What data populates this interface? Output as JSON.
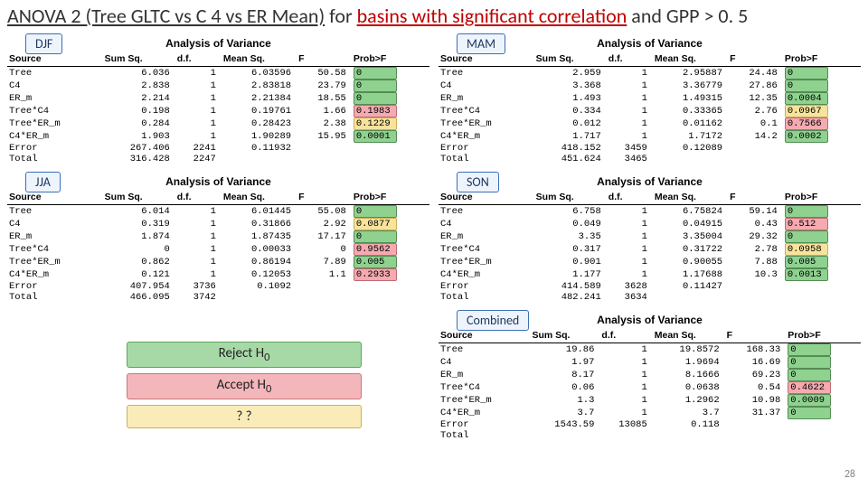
{
  "title": {
    "p1": "ANOVA 2 (Tree GLTC vs C 4 vs ER Mean)",
    "p2": " for ",
    "p3": "basins with significant correlation",
    "p4": " and GPP > 0. 5"
  },
  "slide_number": "28",
  "columns": [
    "Source",
    "Sum Sq.",
    "d.f.",
    "Mean Sq.",
    "F",
    "Prob>F"
  ],
  "anova_heading": "Analysis of Variance",
  "legend": {
    "reject": "Reject H",
    "sub0": "0",
    "accept": "Accept H",
    "qq": "? ?"
  },
  "panels": [
    {
      "tag": "DJF",
      "rows": [
        {
          "src": "Tree",
          "sumsq": "6.036",
          "df": "1",
          "meansq": "6.03596",
          "f": "50.58",
          "p": "0",
          "hl": "green"
        },
        {
          "src": "C4",
          "sumsq": "2.838",
          "df": "1",
          "meansq": "2.83818",
          "f": "23.79",
          "p": "0",
          "hl": "green"
        },
        {
          "src": "ER_m",
          "sumsq": "2.214",
          "df": "1",
          "meansq": "2.21384",
          "f": "18.55",
          "p": "0",
          "hl": "green"
        },
        {
          "src": "Tree*C4",
          "sumsq": "0.198",
          "df": "1",
          "meansq": "0.19761",
          "f": "1.66",
          "p": "0.1983",
          "hl": "red"
        },
        {
          "src": "Tree*ER_m",
          "sumsq": "0.284",
          "df": "1",
          "meansq": "0.28423",
          "f": "2.38",
          "p": "0.1229",
          "hl": "yellow"
        },
        {
          "src": "C4*ER_m",
          "sumsq": "1.903",
          "df": "1",
          "meansq": "1.90289",
          "f": "15.95",
          "p": "0.0001",
          "hl": "green"
        },
        {
          "src": "Error",
          "sumsq": "267.406",
          "df": "2241",
          "meansq": "0.11932",
          "f": "",
          "p": "",
          "hl": ""
        },
        {
          "src": "Total",
          "sumsq": "316.428",
          "df": "2247",
          "meansq": "",
          "f": "",
          "p": "",
          "hl": ""
        }
      ]
    },
    {
      "tag": "MAM",
      "rows": [
        {
          "src": "Tree",
          "sumsq": "2.959",
          "df": "1",
          "meansq": "2.95887",
          "f": "24.48",
          "p": "0",
          "hl": "green"
        },
        {
          "src": "C4",
          "sumsq": "3.368",
          "df": "1",
          "meansq": "3.36779",
          "f": "27.86",
          "p": "0",
          "hl": "green"
        },
        {
          "src": "ER_m",
          "sumsq": "1.493",
          "df": "1",
          "meansq": "1.49315",
          "f": "12.35",
          "p": "0.0004",
          "hl": "green"
        },
        {
          "src": "Tree*C4",
          "sumsq": "0.334",
          "df": "1",
          "meansq": "0.33365",
          "f": "2.76",
          "p": "0.0967",
          "hl": "yellow"
        },
        {
          "src": "Tree*ER_m",
          "sumsq": "0.012",
          "df": "1",
          "meansq": "0.01162",
          "f": "0.1",
          "p": "0.7566",
          "hl": "red"
        },
        {
          "src": "C4*ER_m",
          "sumsq": "1.717",
          "df": "1",
          "meansq": "1.7172",
          "f": "14.2",
          "p": "0.0002",
          "hl": "green"
        },
        {
          "src": "Error",
          "sumsq": "418.152",
          "df": "3459",
          "meansq": "0.12089",
          "f": "",
          "p": "",
          "hl": ""
        },
        {
          "src": "Total",
          "sumsq": "451.624",
          "df": "3465",
          "meansq": "",
          "f": "",
          "p": "",
          "hl": ""
        }
      ]
    },
    {
      "tag": "JJA",
      "rows": [
        {
          "src": "Tree",
          "sumsq": "6.014",
          "df": "1",
          "meansq": "6.01445",
          "f": "55.08",
          "p": "0",
          "hl": "green"
        },
        {
          "src": "C4",
          "sumsq": "0.319",
          "df": "1",
          "meansq": "0.31866",
          "f": "2.92",
          "p": "0.0877",
          "hl": "yellow"
        },
        {
          "src": "ER_m",
          "sumsq": "1.874",
          "df": "1",
          "meansq": "1.87435",
          "f": "17.17",
          "p": "0",
          "hl": "green"
        },
        {
          "src": "Tree*C4",
          "sumsq": "0",
          "df": "1",
          "meansq": "0.00033",
          "f": "0",
          "p": "0.9562",
          "hl": "red"
        },
        {
          "src": "Tree*ER_m",
          "sumsq": "0.862",
          "df": "1",
          "meansq": "0.86194",
          "f": "7.89",
          "p": "0.005",
          "hl": "green"
        },
        {
          "src": "C4*ER_m",
          "sumsq": "0.121",
          "df": "1",
          "meansq": "0.12053",
          "f": "1.1",
          "p": "0.2933",
          "hl": "red"
        },
        {
          "src": "Error",
          "sumsq": "407.954",
          "df": "3736",
          "meansq": "0.1092",
          "f": "",
          "p": "",
          "hl": ""
        },
        {
          "src": "Total",
          "sumsq": "466.095",
          "df": "3742",
          "meansq": "",
          "f": "",
          "p": "",
          "hl": ""
        }
      ]
    },
    {
      "tag": "SON",
      "rows": [
        {
          "src": "Tree",
          "sumsq": "6.758",
          "df": "1",
          "meansq": "6.75824",
          "f": "59.14",
          "p": "0",
          "hl": "green"
        },
        {
          "src": "C4",
          "sumsq": "0.049",
          "df": "1",
          "meansq": "0.04915",
          "f": "0.43",
          "p": "0.512",
          "hl": "red"
        },
        {
          "src": "ER_m",
          "sumsq": "3.35",
          "df": "1",
          "meansq": "3.35004",
          "f": "29.32",
          "p": "0",
          "hl": "green"
        },
        {
          "src": "Tree*C4",
          "sumsq": "0.317",
          "df": "1",
          "meansq": "0.31722",
          "f": "2.78",
          "p": "0.0958",
          "hl": "yellow"
        },
        {
          "src": "Tree*ER_m",
          "sumsq": "0.901",
          "df": "1",
          "meansq": "0.90055",
          "f": "7.88",
          "p": "0.005",
          "hl": "green"
        },
        {
          "src": "C4*ER_m",
          "sumsq": "1.177",
          "df": "1",
          "meansq": "1.17688",
          "f": "10.3",
          "p": "0.0013",
          "hl": "green"
        },
        {
          "src": "Error",
          "sumsq": "414.589",
          "df": "3628",
          "meansq": "0.11427",
          "f": "",
          "p": "",
          "hl": ""
        },
        {
          "src": "Total",
          "sumsq": "482.241",
          "df": "3634",
          "meansq": "",
          "f": "",
          "p": "",
          "hl": ""
        }
      ]
    },
    {
      "tag": "Combined",
      "rows": [
        {
          "src": "Tree",
          "sumsq": "19.86",
          "df": "1",
          "meansq": "19.8572",
          "f": "168.33",
          "p": "0",
          "hl": "green"
        },
        {
          "src": "C4",
          "sumsq": "1.97",
          "df": "1",
          "meansq": "1.9694",
          "f": "16.69",
          "p": "0",
          "hl": "green"
        },
        {
          "src": "ER_m",
          "sumsq": "8.17",
          "df": "1",
          "meansq": "8.1666",
          "f": "69.23",
          "p": "0",
          "hl": "green"
        },
        {
          "src": "Tree*C4",
          "sumsq": "0.06",
          "df": "1",
          "meansq": "0.0638",
          "f": "0.54",
          "p": "0.4622",
          "hl": "red"
        },
        {
          "src": "Tree*ER_m",
          "sumsq": "1.3",
          "df": "1",
          "meansq": "1.2962",
          "f": "10.98",
          "p": "0.0009",
          "hl": "green"
        },
        {
          "src": "C4*ER_m",
          "sumsq": "3.7",
          "df": "1",
          "meansq": "3.7",
          "f": "31.37",
          "p": "0",
          "hl": "green"
        },
        {
          "src": "Error",
          "sumsq": "1543.59",
          "df": "13085",
          "meansq": "0.118",
          "f": "",
          "p": "",
          "hl": ""
        },
        {
          "src": "Total",
          "sumsq": "",
          "df": "",
          "meansq": "",
          "f": "",
          "p": "",
          "hl": ""
        }
      ]
    }
  ]
}
